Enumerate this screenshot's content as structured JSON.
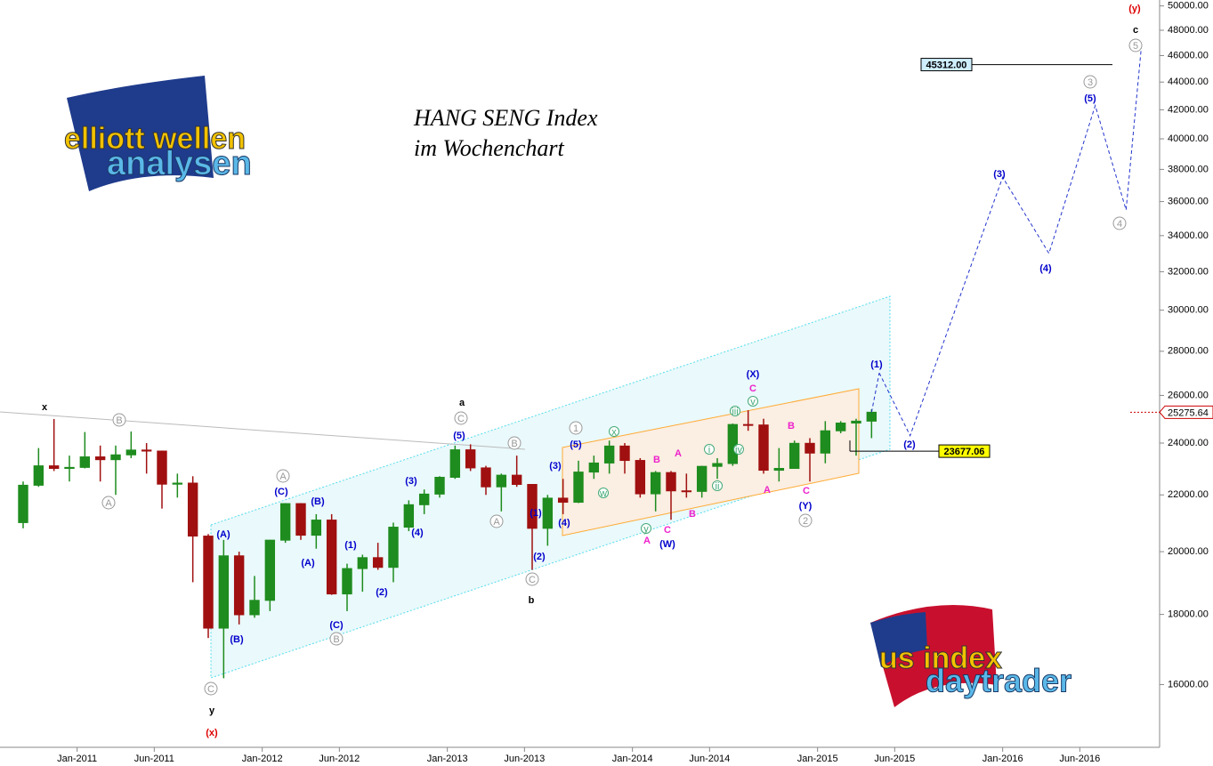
{
  "chart_data": {
    "type": "candlestick",
    "title": "HANG SENG Index",
    "subtitle": "im Wochenchart",
    "logos": [
      "elliott wellen",
      "analysen",
      "us index",
      "daytrader"
    ],
    "log_scale": true,
    "up_color": "#1e8c1e",
    "down_color": "#a01010",
    "xlim": [
      "2010-08",
      "2016-11"
    ],
    "xticks": [
      {
        "value": "2011-01",
        "label": "Jan-2011"
      },
      {
        "value": "2011-06",
        "label": "Jun-2011"
      },
      {
        "value": "2012-01",
        "label": "Jan-2012"
      },
      {
        "value": "2012-06",
        "label": "Jun-2012"
      },
      {
        "value": "2013-01",
        "label": "Jan-2013"
      },
      {
        "value": "2013-06",
        "label": "Jun-2013"
      },
      {
        "value": "2014-01",
        "label": "Jan-2014"
      },
      {
        "value": "2014-06",
        "label": "Jun-2014"
      },
      {
        "value": "2015-01",
        "label": "Jan-2015"
      },
      {
        "value": "2015-06",
        "label": "Jun-2015"
      },
      {
        "value": "2016-01",
        "label": "Jan-2016"
      },
      {
        "value": "2016-06",
        "label": "Jun-2016"
      }
    ],
    "ylim": [
      14400,
      50500
    ],
    "yticks": [
      {
        "value": 16000,
        "label": "16000.00"
      },
      {
        "value": 18000,
        "label": "18000.00"
      },
      {
        "value": 20000,
        "label": "20000.00"
      },
      {
        "value": 22000,
        "label": "22000.00"
      },
      {
        "value": 24000,
        "label": "24000.00"
      },
      {
        "value": 26000,
        "label": "26000.00"
      },
      {
        "value": 28000,
        "label": "28000.00"
      },
      {
        "value": 30000,
        "label": "30000.00"
      },
      {
        "value": 32000,
        "label": "32000.00"
      },
      {
        "value": 34000,
        "label": "34000.00"
      },
      {
        "value": 36000,
        "label": "36000.00"
      },
      {
        "value": 38000,
        "label": "38000.00"
      },
      {
        "value": 40000,
        "label": "40000.00"
      },
      {
        "value": 42000,
        "label": "42000.00"
      },
      {
        "value": 44000,
        "label": "44000.00"
      },
      {
        "value": 46000,
        "label": "46000.00"
      },
      {
        "value": 48000,
        "label": "48000.00"
      },
      {
        "value": 50000,
        "label": "50000.00"
      }
    ],
    "x": [
      "2010-09",
      "2010-10",
      "2010-11",
      "2010-12",
      "2011-01",
      "2011-02",
      "2011-03",
      "2011-04",
      "2011-05",
      "2011-06",
      "2011-07",
      "2011-08",
      "2011-09",
      "2011-10",
      "2011-11",
      "2011-12",
      "2012-01",
      "2012-02",
      "2012-03",
      "2012-04",
      "2012-05",
      "2012-06",
      "2012-07",
      "2012-08",
      "2012-09",
      "2012-10",
      "2012-11",
      "2012-12",
      "2013-01",
      "2013-02",
      "2013-03",
      "2013-04",
      "2013-05",
      "2013-06",
      "2013-07",
      "2013-08",
      "2013-09",
      "2013-10",
      "2013-11",
      "2013-12",
      "2014-01",
      "2014-02",
      "2014-03",
      "2014-04",
      "2014-05",
      "2014-06",
      "2014-07",
      "2014-08",
      "2014-09",
      "2014-10",
      "2014-11",
      "2014-12",
      "2015-01",
      "2015-02",
      "2015-03",
      "2015-04"
    ],
    "open": [
      21000,
      22360,
      23100,
      23000,
      23040,
      23450,
      23340,
      23530,
      23720,
      23680,
      22400,
      22440,
      20530,
      17590,
      19860,
      17990,
      18430,
      20390,
      21680,
      20560,
      21090,
      18630,
      19440,
      19800,
      19480,
      20840,
      21640,
      22030,
      22660,
      23730,
      23020,
      22300,
      22740,
      22390,
      20800,
      21880,
      21730,
      22860,
      23210,
      23880,
      23310,
      22040,
      22840,
      22150,
      22130,
      23080,
      23190,
      24760,
      24740,
      22930,
      23000,
      23990,
      23600,
      24500,
      24820,
      24900
    ],
    "high": [
      22500,
      23800,
      24990,
      23500,
      24450,
      23900,
      23900,
      24470,
      24000,
      23700,
      22800,
      22700,
      20600,
      20400,
      20000,
      19200,
      20400,
      21700,
      21700,
      21300,
      21300,
      19600,
      19900,
      20300,
      21000,
      21800,
      22200,
      22700,
      23900,
      23950,
      23100,
      22800,
      23500,
      22400,
      22000,
      22600,
      23300,
      23500,
      24100,
      24000,
      23400,
      22900,
      22900,
      22800,
      23100,
      23400,
      24800,
      25360,
      25000,
      23800,
      24100,
      24200,
      24900,
      24900,
      25000,
      25400
    ],
    "low": [
      20800,
      22300,
      22900,
      22500,
      23000,
      22500,
      22000,
      23400,
      22800,
      21500,
      21900,
      19000,
      17300,
      16170,
      17700,
      17900,
      18100,
      20300,
      20400,
      20100,
      18600,
      18100,
      18700,
      19400,
      19000,
      20700,
      21300,
      21900,
      22600,
      22900,
      22000,
      21400,
      22300,
      19400,
      20200,
      21300,
      21700,
      22600,
      22800,
      22800,
      21900,
      21400,
      21100,
      21900,
      21900,
      22600,
      23100,
      24500,
      22800,
      22500,
      23000,
      22500,
      23200,
      24400,
      23500,
      24200
    ],
    "close": [
      22360,
      23100,
      23000,
      23040,
      23450,
      23340,
      23530,
      23720,
      23680,
      22400,
      22440,
      20530,
      17590,
      19860,
      17990,
      18430,
      20390,
      21680,
      20560,
      21090,
      18630,
      19440,
      19800,
      19480,
      20840,
      21640,
      22030,
      22660,
      23730,
      23020,
      22300,
      22740,
      22390,
      20800,
      21880,
      21730,
      22860,
      23210,
      23880,
      23310,
      22040,
      22840,
      22150,
      22130,
      23080,
      23190,
      24760,
      24740,
      22930,
      23000,
      23990,
      23600,
      24500,
      24820,
      24900,
      25275.64
    ],
    "last_price": 25275.64,
    "projection": {
      "color": "#2233cc",
      "x": [
        "2015-05",
        "2015-07",
        "2016-01",
        "2016-04",
        "2016-07",
        "2016-09",
        "2016-10"
      ],
      "values": [
        27000,
        24300,
        37500,
        33000,
        42300,
        35500,
        46800
      ]
    },
    "levels": [
      {
        "value": 45312,
        "label": "45312.00",
        "color": "#cfefff"
      },
      {
        "value": 23677.06,
        "label": "23677.06",
        "color": "#ffff00"
      }
    ],
    "annotations": [
      {
        "text": "x",
        "color": "#000000"
      },
      {
        "text": "a",
        "color": "#000000"
      },
      {
        "text": "b",
        "color": "#000000"
      },
      {
        "text": "y",
        "color": "#000000"
      },
      {
        "text": "c",
        "color": "#000000"
      },
      {
        "text": "(x)",
        "color": "#dd0000"
      },
      {
        "text": "(y)",
        "color": "#dd0000"
      },
      {
        "text": "(A)",
        "color": "#0000cc"
      },
      {
        "text": "(B)",
        "color": "#0000cc"
      },
      {
        "text": "(C)",
        "color": "#0000cc"
      },
      {
        "text": "(A)",
        "color": "#0000cc"
      },
      {
        "text": "(B)",
        "color": "#0000cc"
      },
      {
        "text": "(C)",
        "color": "#0000cc"
      },
      {
        "text": "(1)",
        "color": "#0000cc"
      },
      {
        "text": "(2)",
        "color": "#0000cc"
      },
      {
        "text": "(3)",
        "color": "#0000cc"
      },
      {
        "text": "(4)",
        "color": "#0000cc"
      },
      {
        "text": "(5)",
        "color": "#0000cc"
      },
      {
        "text": "(3)",
        "color": "#0000cc"
      },
      {
        "text": "(4)",
        "color": "#0000cc"
      },
      {
        "text": "(5)",
        "color": "#0000cc"
      },
      {
        "text": "(1)",
        "color": "#0000cc"
      },
      {
        "text": "(2)",
        "color": "#0000cc"
      },
      {
        "text": "(X)",
        "color": "#0000cc"
      },
      {
        "text": "(Y)",
        "color": "#0000cc"
      },
      {
        "text": "(W)",
        "color": "#0000cc"
      },
      {
        "text": "(1)",
        "color": "#0000cc"
      },
      {
        "text": "(2)",
        "color": "#0000cc"
      },
      {
        "text": "(3)",
        "color": "#0000cc"
      },
      {
        "text": "(4)",
        "color": "#0000cc"
      },
      {
        "text": "(5)",
        "color": "#0000cc"
      },
      {
        "text": "B",
        "color": "#999999",
        "circled": true
      },
      {
        "text": "A",
        "color": "#999999",
        "circled": true
      },
      {
        "text": "A",
        "color": "#999999",
        "circled": true
      },
      {
        "text": "B",
        "color": "#999999",
        "circled": true
      },
      {
        "text": "C",
        "color": "#999999",
        "circled": true
      },
      {
        "text": "B",
        "color": "#999999",
        "circled": true
      },
      {
        "text": "A",
        "color": "#999999",
        "circled": true
      },
      {
        "text": "C",
        "color": "#999999",
        "circled": true
      },
      {
        "text": "C",
        "color": "#999999",
        "circled": true
      },
      {
        "text": "1",
        "color": "#999999",
        "circled": true
      },
      {
        "text": "2",
        "color": "#999999",
        "circled": true
      },
      {
        "text": "3",
        "color": "#999999",
        "circled": true
      },
      {
        "text": "4",
        "color": "#999999",
        "circled": true
      },
      {
        "text": "5",
        "color": "#999999",
        "circled": true
      },
      {
        "text": "A",
        "color": "#ee22cc"
      },
      {
        "text": "C",
        "color": "#ee22cc"
      },
      {
        "text": "B",
        "color": "#ee22cc"
      },
      {
        "text": "A",
        "color": "#ee22cc"
      },
      {
        "text": "B",
        "color": "#ee22cc"
      },
      {
        "text": "C",
        "color": "#ee22cc"
      },
      {
        "text": "B",
        "color": "#ee22cc"
      },
      {
        "text": "A",
        "color": "#ee22cc"
      },
      {
        "text": "C",
        "color": "#ee22cc"
      },
      {
        "text": "x",
        "color": "#44aa77",
        "circled": true
      },
      {
        "text": "w",
        "color": "#44aa77",
        "circled": true
      },
      {
        "text": "y",
        "color": "#44aa77",
        "circled": true
      },
      {
        "text": "i",
        "color": "#44aa77",
        "circled": true
      },
      {
        "text": "ii",
        "color": "#44aa77",
        "circled": true
      },
      {
        "text": "iii",
        "color": "#44aa77",
        "circled": true
      },
      {
        "text": "iv",
        "color": "#44aa77",
        "circled": true
      },
      {
        "text": "v",
        "color": "#44aa77",
        "circled": true
      }
    ]
  }
}
